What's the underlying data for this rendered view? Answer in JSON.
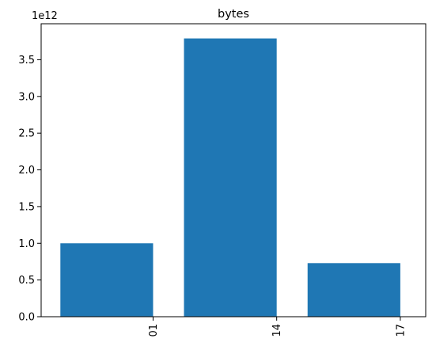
{
  "chart_data": {
    "type": "bar",
    "title": "bytes",
    "xlabel": "",
    "ylabel": "",
    "categories": [
      "01",
      "14",
      "17"
    ],
    "values": [
      1000000000000.0,
      3790000000000.0,
      730000000000.0
    ],
    "ylim": [
      0,
      3990000000000.0
    ],
    "y_ticks": [
      0.0,
      500000000000.0,
      1000000000000.0,
      1500000000000.0,
      2000000000000.0,
      2500000000000.0,
      3000000000000.0,
      3500000000000.0
    ],
    "y_tick_labels": [
      "0.0",
      "0.5",
      "1.0",
      "1.5",
      "2.0",
      "2.5",
      "3.0",
      "3.5"
    ],
    "y_offset_label": "1e12",
    "x_tick_rotation": "vertical",
    "bar_alignment": "right edge at tick",
    "grid": false,
    "legend": "none",
    "bar_color": "#1f77b4"
  }
}
